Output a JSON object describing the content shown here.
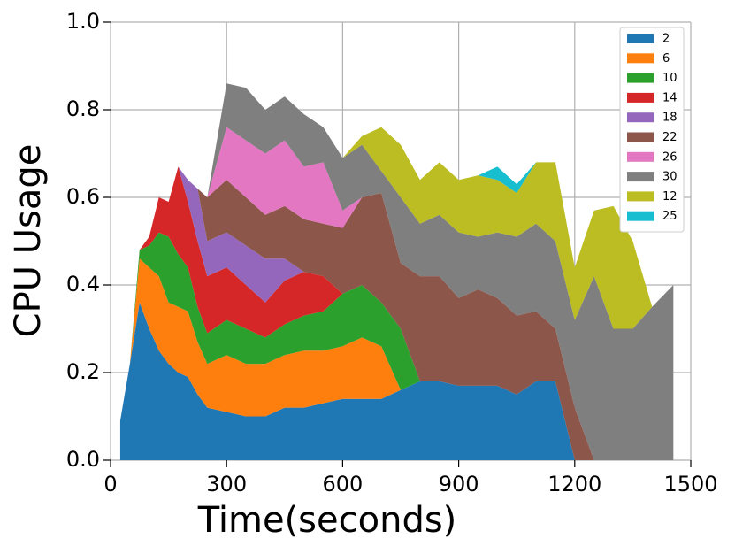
{
  "chart_data": {
    "type": "stacked_area",
    "xlabel": "Time(seconds)",
    "ylabel": "CPU Usage",
    "x": [
      25,
      50,
      75,
      100,
      125,
      150,
      175,
      200,
      225,
      250,
      300,
      350,
      400,
      450,
      500,
      550,
      600,
      650,
      700,
      750,
      800,
      850,
      900,
      950,
      1000,
      1050,
      1100,
      1150,
      1200,
      1250,
      1300,
      1350,
      1400,
      1455
    ],
    "series": [
      {
        "name": "2",
        "color": "#1f77b4",
        "values": [
          0.09,
          0.22,
          0.36,
          0.3,
          0.25,
          0.22,
          0.2,
          0.19,
          0.15,
          0.12,
          0.11,
          0.1,
          0.1,
          0.12,
          0.12,
          0.13,
          0.14,
          0.14,
          0.14,
          0.16,
          0.18,
          0.18,
          0.17,
          0.17,
          0.17,
          0.15,
          0.18,
          0.18,
          0,
          0,
          0,
          0,
          0,
          0
        ]
      },
      {
        "name": "6",
        "color": "#ff7f0e",
        "values": [
          0,
          0,
          0.1,
          0.14,
          0.17,
          0.14,
          0.15,
          0.15,
          0.12,
          0.1,
          0.13,
          0.12,
          0.12,
          0.12,
          0.13,
          0.12,
          0.12,
          0.14,
          0.12,
          0,
          0,
          0,
          0,
          0,
          0,
          0,
          0,
          0,
          0,
          0,
          0,
          0,
          0,
          0
        ]
      },
      {
        "name": "10",
        "color": "#2ca02c",
        "values": [
          0,
          0,
          0.02,
          0.05,
          0.1,
          0.15,
          0.12,
          0.1,
          0.08,
          0.07,
          0.08,
          0.08,
          0.06,
          0.07,
          0.08,
          0.09,
          0.12,
          0.12,
          0.1,
          0.14,
          0,
          0,
          0,
          0,
          0,
          0,
          0,
          0,
          0,
          0,
          0,
          0,
          0,
          0
        ]
      },
      {
        "name": "14",
        "color": "#d62728",
        "values": [
          0,
          0,
          0,
          0.02,
          0.08,
          0.08,
          0.2,
          0.15,
          0.15,
          0.13,
          0.12,
          0.1,
          0.08,
          0.1,
          0.1,
          0.08,
          0,
          0,
          0,
          0,
          0,
          0,
          0,
          0,
          0,
          0,
          0,
          0,
          0,
          0,
          0,
          0,
          0,
          0
        ]
      },
      {
        "name": "18",
        "color": "#9467bd",
        "values": [
          0,
          0,
          0,
          0,
          0,
          0,
          0,
          0.05,
          0.12,
          0.08,
          0.08,
          0.09,
          0.1,
          0.05,
          0,
          0,
          0,
          0,
          0,
          0,
          0,
          0,
          0,
          0,
          0,
          0,
          0,
          0,
          0,
          0,
          0,
          0,
          0,
          0
        ]
      },
      {
        "name": "22",
        "color": "#8c564b",
        "values": [
          0,
          0,
          0,
          0,
          0,
          0,
          0,
          0,
          0,
          0.1,
          0.12,
          0.11,
          0.1,
          0.12,
          0.12,
          0.12,
          0.15,
          0.2,
          0.25,
          0.15,
          0.24,
          0.24,
          0.2,
          0.22,
          0.2,
          0.18,
          0.16,
          0.12,
          0.12,
          0,
          0,
          0,
          0,
          0
        ]
      },
      {
        "name": "26",
        "color": "#e377c2",
        "values": [
          0,
          0,
          0,
          0,
          0,
          0,
          0,
          0,
          0,
          0,
          0.12,
          0.13,
          0.14,
          0.15,
          0.12,
          0.14,
          0.04,
          0,
          0,
          0,
          0,
          0,
          0,
          0,
          0,
          0,
          0,
          0,
          0,
          0,
          0,
          0,
          0,
          0
        ]
      },
      {
        "name": "30",
        "color": "#7f7f7f",
        "values": [
          0,
          0,
          0,
          0,
          0,
          0,
          0,
          0,
          0,
          0,
          0.1,
          0.12,
          0.1,
          0.1,
          0.12,
          0.08,
          0.12,
          0.12,
          0.05,
          0.15,
          0.12,
          0.14,
          0.15,
          0.12,
          0.15,
          0.18,
          0.2,
          0.2,
          0.2,
          0.42,
          0.3,
          0.3,
          0.35,
          0.4
        ]
      },
      {
        "name": "12",
        "color": "#bcbd22",
        "values": [
          0,
          0,
          0,
          0,
          0,
          0,
          0,
          0,
          0,
          0,
          0,
          0,
          0,
          0,
          0,
          0,
          0,
          0.02,
          0.1,
          0.12,
          0.1,
          0.12,
          0.12,
          0.14,
          0.12,
          0.1,
          0.14,
          0.18,
          0.12,
          0.15,
          0.28,
          0.2,
          0,
          0
        ]
      },
      {
        "name": "25",
        "color": "#17becf",
        "values": [
          0,
          0,
          0,
          0,
          0,
          0,
          0,
          0,
          0,
          0,
          0,
          0,
          0,
          0,
          0.0,
          0,
          0,
          0,
          0,
          0,
          0,
          0,
          0,
          0,
          0.03,
          0.02,
          0,
          0,
          0,
          0,
          0,
          0,
          0,
          0
        ]
      }
    ],
    "xlim": [
      0,
      1500
    ],
    "xticks": [
      0,
      300,
      600,
      900,
      1200,
      1500
    ],
    "ylim": [
      0,
      1.0
    ],
    "yticks": [
      {
        "value": 0,
        "label": "0.0"
      },
      {
        "value": 0.2,
        "label": "0.2"
      },
      {
        "value": 0.4,
        "label": "0.4"
      },
      {
        "value": 0.6,
        "label": "0.6"
      },
      {
        "value": 0.8,
        "label": "0.8"
      },
      {
        "value": 1.0,
        "label": "1.0"
      }
    ],
    "grid": true,
    "legend": "upper right"
  }
}
